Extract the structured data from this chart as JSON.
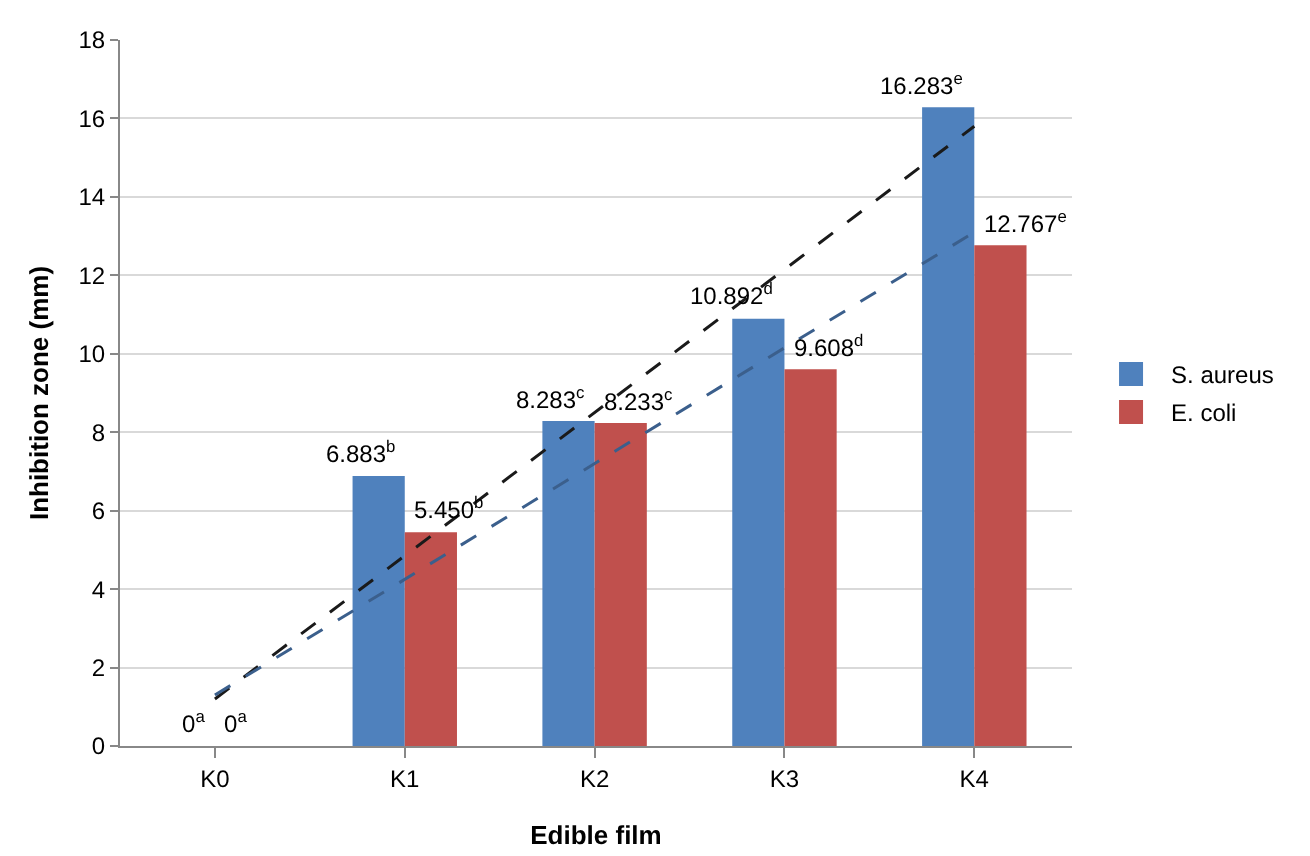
{
  "chart_data": {
    "type": "bar",
    "xlabel": "Edible film",
    "ylabel": "Inhibition zone (mm)",
    "categories": [
      "K0",
      "K1",
      "K2",
      "K3",
      "K4"
    ],
    "ylim": [
      0,
      18
    ],
    "yticks": [
      0,
      2,
      4,
      6,
      8,
      10,
      12,
      14,
      16,
      18
    ],
    "grid": "y",
    "legend": "right",
    "series": [
      {
        "name": "S. aureus",
        "color": "#4f81bd",
        "values": [
          0,
          6.883,
          8.283,
          10.892,
          16.283
        ],
        "value_labels": [
          "0$^{a}$",
          "6.883$^{b}$",
          "8.283$^{c}$",
          "10.892$^{d}$",
          "16.283$^{e}$"
        ]
      },
      {
        "name": "E. coli",
        "color": "#c0504d",
        "values": [
          0,
          5.45,
          8.233,
          9.608,
          12.767
        ],
        "value_labels": [
          "0$^{a}$",
          "5.450$^{b}$",
          "8.233$^{c}$",
          "9.608$^{d}$",
          "12.767$^{e}$"
        ]
      },
      {
        "type": "line",
        "color": "#1a1a1a",
        "x": [
          "K0",
          "K4"
        ],
        "values": [
          1.2,
          15.8
        ],
        "line_style": "dashed"
      },
      {
        "type": "line",
        "color": "#3b5f8c",
        "x": [
          "K0",
          "K4"
        ],
        "values": [
          1.3,
          13.1
        ],
        "line_style": "dashed"
      }
    ]
  }
}
